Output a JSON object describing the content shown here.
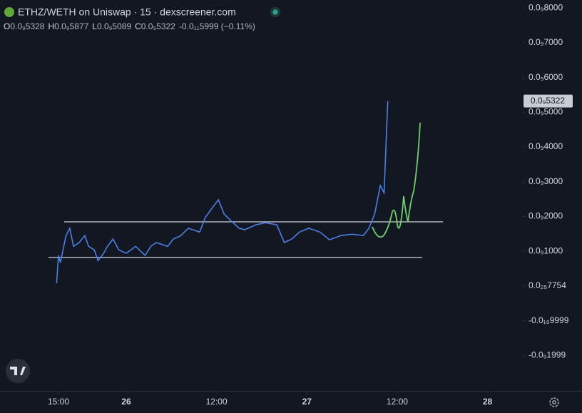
{
  "chart_data": {
    "type": "line",
    "title": "ETHZ/WETH on Uniswap · 15 · dexscreener.com",
    "ohlc": [
      {
        "key": "O",
        "text": "0.0₉5328"
      },
      {
        "key": "H",
        "text": "0.0₉5877"
      },
      {
        "key": "L",
        "text": "0.0₉5089"
      },
      {
        "key": "C",
        "text": "0.0₉5322"
      }
    ],
    "change": "-0.0₁₁5999 (−0.11%)",
    "price_label": {
      "value": 5.322e-11,
      "label": "0.0₉5322"
    },
    "x": [
      -0.25,
      0,
      0.25,
      1,
      1.5,
      2,
      2.75,
      3.5,
      4,
      4.75,
      5.25,
      6,
      6.5,
      7.25,
      8,
      9,
      10.25,
      11.5,
      12.25,
      13,
      14.5,
      15.25,
      16.25,
      17.25,
      18.75,
      19.5,
      20.5,
      21.25,
      22,
      23,
      24,
      24.75,
      26.25,
      27.5,
      29,
      30,
      31,
      32,
      33.25,
      34.75,
      36,
      37.5,
      39,
      40.5,
      41.25,
      42,
      42.75,
      43.25,
      43.75
    ],
    "series": [
      {
        "name": "ETHZ/WETH",
        "color": "#4a80e8",
        "values": [
          8e-13,
          8.8e-12,
          6.7e-12,
          1.45e-11,
          1.66e-11,
          1.14e-11,
          1.25e-11,
          1.45e-11,
          1.14e-11,
          1.04e-11,
          7.3e-12,
          9.4e-12,
          1.14e-11,
          1.35e-11,
          1.04e-11,
          9.4e-12,
          1.14e-11,
          8.8e-12,
          1.14e-11,
          1.25e-11,
          1.14e-11,
          1.35e-11,
          1.45e-11,
          1.66e-11,
          1.55e-11,
          1.97e-11,
          2.27e-11,
          2.48e-11,
          2.07e-11,
          1.86e-11,
          1.66e-11,
          1.62e-11,
          1.76e-11,
          1.82e-11,
          1.76e-11,
          1.25e-11,
          1.35e-11,
          1.55e-11,
          1.66e-11,
          1.55e-11,
          1.33e-11,
          1.45e-11,
          1.49e-11,
          1.45e-11,
          1.66e-11,
          2.07e-11,
          2.89e-11,
          2.68e-11,
          5.322e-11
        ]
      }
    ],
    "xlim": [
      -7.77,
      61.4
    ],
    "xticks": [
      {
        "value": 0,
        "label": "15:00"
      },
      {
        "value": 9,
        "label": "26"
      },
      {
        "value": 21,
        "label": "12:00"
      },
      {
        "value": 33,
        "label": "27"
      },
      {
        "value": 45,
        "label": "12:00"
      },
      {
        "value": 57,
        "label": "28"
      }
    ],
    "ylim": [
      -3.02e-11,
      8.23e-11
    ],
    "yticks": [
      {
        "value": 8e-11,
        "label": "0.0₉8000"
      },
      {
        "value": 7e-11,
        "label": "0.0₉7000"
      },
      {
        "value": 6e-11,
        "label": "0.0₉6000"
      },
      {
        "value": 5e-11,
        "label": "0.0₉5000"
      },
      {
        "value": 4e-11,
        "label": "0.0₉4000"
      },
      {
        "value": 3e-11,
        "label": "0.0₉3000"
      },
      {
        "value": 2e-11,
        "label": "0.0₉2000"
      },
      {
        "value": 1e-11,
        "label": "0.0₉1000"
      },
      {
        "value": 7.754e-27,
        "label": "0.0₂₅7754"
      },
      {
        "value": -9.999e-12,
        "label": "-0.0₁₀9999"
      },
      {
        "value": -1.999e-11,
        "label": "-0.0₉1999"
      }
    ],
    "grid": false
  }
}
